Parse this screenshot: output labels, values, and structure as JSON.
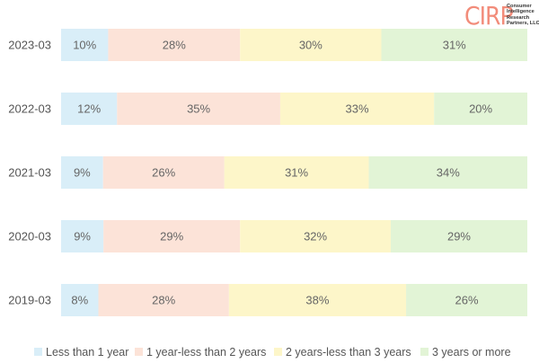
{
  "logo": {
    "mark": "CIRP",
    "lines": [
      "Consumer",
      "Intelligence",
      "Research",
      "Partners, LLC"
    ]
  },
  "chart_data": {
    "type": "bar",
    "orientation": "horizontal",
    "stacked": true,
    "percent": true,
    "categories": [
      "2023-03",
      "2022-03",
      "2021-03",
      "2020-03",
      "2019-03"
    ],
    "series": [
      {
        "name": "Less than 1 year",
        "color": "#d9eef8",
        "values": [
          10,
          12,
          9,
          9,
          8
        ]
      },
      {
        "name": "1 year-less than 2 years",
        "color": "#fce3d8",
        "values": [
          28,
          35,
          26,
          29,
          28
        ]
      },
      {
        "name": "2 years-less than 3 years",
        "color": "#fdf6c9",
        "values": [
          30,
          33,
          31,
          32,
          38
        ]
      },
      {
        "name": "3 years or more",
        "color": "#e2f4d6",
        "values": [
          31,
          20,
          34,
          29,
          26
        ]
      }
    ],
    "value_label_suffix": "%",
    "grid": false,
    "legend_position": "bottom"
  }
}
